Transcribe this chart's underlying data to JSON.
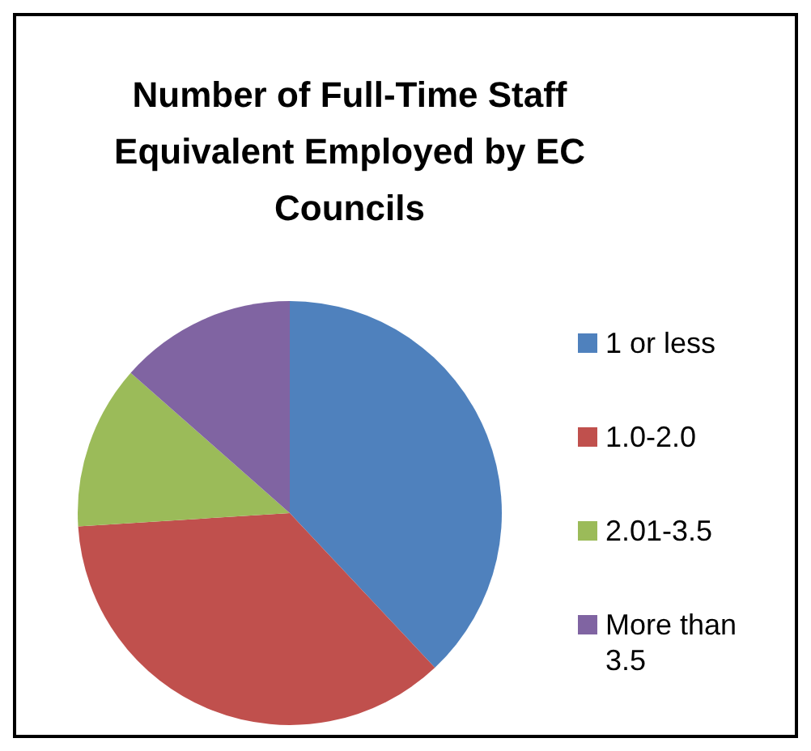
{
  "chart_data": {
    "type": "pie",
    "title": "Number of Full-Time Staff Equivalent Employed by EC Councils",
    "categories": [
      "1 or less",
      "1.0-2.0",
      "2.01-3.5",
      "More than 3.5"
    ],
    "values": [
      38,
      36,
      12.5,
      13.5
    ],
    "colors": [
      "#4f81bd",
      "#c0504d",
      "#9bbb59",
      "#8064a2"
    ],
    "legend": "right"
  }
}
